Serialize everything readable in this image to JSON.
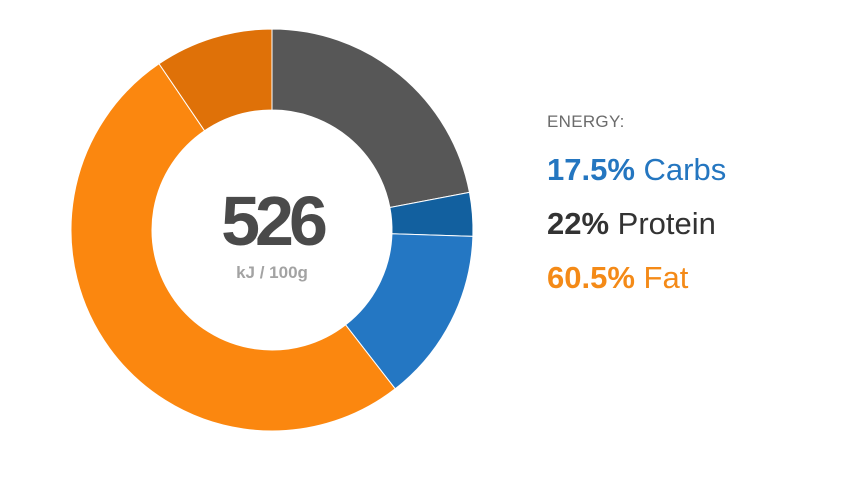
{
  "center": {
    "value": "526",
    "unit": "kJ / 100g"
  },
  "legend": {
    "title": "ENERGY:",
    "items": [
      {
        "percent": "17.5%",
        "label": "Carbs",
        "color": "#2476c0"
      },
      {
        "percent": "22%",
        "label": "Protein",
        "color": "#333333"
      },
      {
        "percent": "60.5%",
        "label": "Fat",
        "color": "#f48a17"
      }
    ]
  },
  "chart_data": {
    "type": "pie",
    "donut": true,
    "slices": [
      {
        "value": 22,
        "color": "#575757"
      },
      {
        "value": 3.5,
        "color": "#12609f"
      },
      {
        "value": 14,
        "color": "#2477c3"
      },
      {
        "value": 51,
        "color": "#fb870f"
      },
      {
        "value": 9.5,
        "color": "#df7108"
      }
    ]
  }
}
